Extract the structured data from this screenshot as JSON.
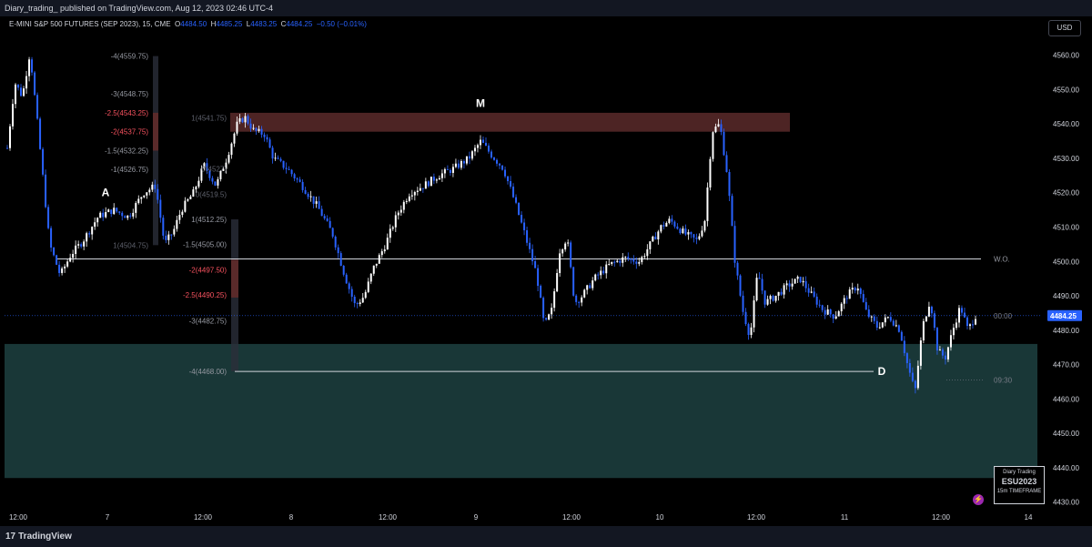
{
  "header": {
    "publisher_line": "Diary_trading_ published on TradingView.com, Aug 12, 2023 02:46 UTC-4"
  },
  "legend": {
    "symbol": "E-MINI S&P 500 FUTURES (SEP 2023), 15, CME",
    "open_label": "O",
    "open": "4484.50",
    "high_label": "H",
    "high": "4485.25",
    "low_label": "L",
    "low": "4483.25",
    "close_label": "C",
    "close": "4484.25",
    "change": "−0.50 (−0.01%)"
  },
  "currency_button": "USD",
  "price_label": "4484.25",
  "badge": {
    "line1": "Diary Trading",
    "line2": "ESU2023",
    "line3": "15m TIMEFRAME"
  },
  "brand": {
    "name": "TradingView",
    "mark": "17"
  },
  "flash_icon": "lightning-icon",
  "colors": {
    "background": "#000000",
    "bull_candle": "#ffffff",
    "bear_candle": "#2962ff",
    "supply_zone": "#5a2a2a",
    "demand_zone": "#1a3a3a",
    "fib_red": "#f7525f",
    "fib_gray": "#9598a1"
  },
  "chart_data": {
    "type": "candlestick",
    "symbol": "ESU2023",
    "timeframe": "15",
    "y_axis": {
      "ticks": [
        4430.0,
        4440.0,
        4450.0,
        4460.0,
        4470.0,
        4480.0,
        4490.0,
        4500.0,
        4510.0,
        4520.0,
        4530.0,
        4540.0,
        4550.0,
        4560.0
      ],
      "tick_labels": [
        "4430.00",
        "4440.00",
        "4450.00",
        "4460.00",
        "4470.00",
        "4480.00",
        "4490.00",
        "4500.00",
        "4510.00",
        "4520.00",
        "4530.00",
        "4540.00",
        "4550.00",
        "4560.00"
      ],
      "ylim": [
        4427.0,
        4566.0
      ]
    },
    "x_axis": {
      "tick_labels": [
        "12:00",
        "7",
        "12:00",
        "8",
        "12:00",
        "9",
        "12:00",
        "10",
        "12:00",
        "11",
        "12:00",
        "14"
      ]
    },
    "price_path": [
      [
        0,
        4533
      ],
      [
        0.5,
        4552
      ],
      [
        1.0,
        4548
      ],
      [
        1.5,
        4561
      ],
      [
        2.0,
        4540
      ],
      [
        2.8,
        4505
      ],
      [
        3.5,
        4496
      ],
      [
        4.2,
        4502
      ],
      [
        5,
        4506
      ],
      [
        6,
        4513
      ],
      [
        7,
        4515
      ],
      [
        8,
        4513
      ],
      [
        9,
        4520
      ],
      [
        9.8,
        4522
      ],
      [
        10.4,
        4505
      ],
      [
        11,
        4509
      ],
      [
        11.5,
        4515
      ],
      [
        12.3,
        4520
      ],
      [
        13,
        4528
      ],
      [
        13.8,
        4522
      ],
      [
        14.5,
        4530
      ],
      [
        15.2,
        4540
      ],
      [
        15.7,
        4542
      ],
      [
        16.3,
        4538
      ],
      [
        17,
        4537
      ],
      [
        17.6,
        4530
      ],
      [
        18.5,
        4527
      ],
      [
        19.5,
        4522
      ],
      [
        20.5,
        4516
      ],
      [
        21.5,
        4508
      ],
      [
        22.3,
        4496
      ],
      [
        23,
        4487
      ],
      [
        23.6,
        4490
      ],
      [
        24.2,
        4498
      ],
      [
        25,
        4505
      ],
      [
        25.8,
        4514
      ],
      [
        26.6,
        4520
      ],
      [
        27.5,
        4522
      ],
      [
        28.5,
        4525
      ],
      [
        29.5,
        4527
      ],
      [
        30.5,
        4530
      ],
      [
        31.3,
        4535
      ],
      [
        32,
        4531
      ],
      [
        32.8,
        4527
      ],
      [
        33.5,
        4518
      ],
      [
        34.2,
        4508
      ],
      [
        35,
        4496
      ],
      [
        35.5,
        4481
      ],
      [
        36,
        4486
      ],
      [
        36.5,
        4503
      ],
      [
        37,
        4507
      ],
      [
        37.5,
        4488
      ],
      [
        38,
        4490
      ],
      [
        38.8,
        4495
      ],
      [
        39.8,
        4499
      ],
      [
        40.8,
        4501
      ],
      [
        41.8,
        4500
      ],
      [
        42.5,
        4505
      ],
      [
        43.2,
        4510
      ],
      [
        43.8,
        4512
      ],
      [
        44.8,
        4508
      ],
      [
        45.6,
        4506
      ],
      [
        46.1,
        4512
      ],
      [
        46.6,
        4538
      ],
      [
        47.1,
        4540
      ],
      [
        47.6,
        4525
      ],
      [
        48.1,
        4500
      ],
      [
        48.6,
        4486
      ],
      [
        49.1,
        4478
      ],
      [
        49.6,
        4497
      ],
      [
        50.1,
        4488
      ],
      [
        50.8,
        4490
      ],
      [
        51.6,
        4493
      ],
      [
        52.4,
        4495
      ],
      [
        53.2,
        4490
      ],
      [
        53.9,
        4486
      ],
      [
        54.7,
        4484
      ],
      [
        55.5,
        4490
      ],
      [
        56.2,
        4493
      ],
      [
        56.8,
        4485
      ],
      [
        57.5,
        4481
      ],
      [
        58.3,
        4484
      ],
      [
        59,
        4480
      ],
      [
        59.5,
        4470
      ],
      [
        60,
        4462
      ],
      [
        60.5,
        4481
      ],
      [
        61,
        4489
      ],
      [
        61.5,
        4474
      ],
      [
        62,
        4472
      ],
      [
        62.5,
        4480
      ],
      [
        63,
        4487
      ],
      [
        63.5,
        4480
      ],
      [
        64,
        4484.25
      ]
    ],
    "zones": [
      {
        "name": "supply",
        "top": 4543.25,
        "bottom": 4537.75
      },
      {
        "name": "demand",
        "top": 4476.0,
        "bottom": 4437.0
      }
    ],
    "horizontal_lines": [
      {
        "label": "W.O.",
        "price": 4500.75
      },
      {
        "label": "D",
        "price": 4468.0
      }
    ],
    "price_markers": [
      {
        "label": "00:00",
        "price": 4484.25
      },
      {
        "label": "09:30",
        "price": 4465.5
      }
    ],
    "pattern_labels": [
      {
        "text": "A",
        "price": 4520
      },
      {
        "text": "M",
        "price": 4546
      },
      {
        "text": "D",
        "price": 4468
      }
    ],
    "fib_left": [
      {
        "text": "-4(4559.75)",
        "price": 4559.75,
        "color": "gray"
      },
      {
        "text": "-3(4548.75)",
        "price": 4548.75,
        "color": "gray"
      },
      {
        "text": "-2.5(4543.25)",
        "price": 4543.25,
        "color": "red"
      },
      {
        "text": "-2(4537.75)",
        "price": 4537.75,
        "color": "red"
      },
      {
        "text": "-1.5(4532.25)",
        "price": 4532.25,
        "color": "gray"
      },
      {
        "text": "-1(4526.75)",
        "price": 4526.75,
        "color": "gray"
      },
      {
        "text": "1(4504.75)",
        "price": 4504.75,
        "color": "dim"
      }
    ],
    "fib_right": [
      {
        "text": "1(4541.75)",
        "price": 4541.75,
        "color": "dim"
      },
      {
        "text": "0(4527)",
        "price": 4527.0,
        "color": "dim"
      },
      {
        "text": "0(4519.5)",
        "price": 4519.5,
        "color": "dim"
      },
      {
        "text": "1(4512.25)",
        "price": 4512.25,
        "color": "gray"
      },
      {
        "text": "-1.5(4505.00)",
        "price": 4505.0,
        "color": "gray"
      },
      {
        "text": "-2(4497.50)",
        "price": 4497.5,
        "color": "red"
      },
      {
        "text": "-2.5(4490.25)",
        "price": 4490.25,
        "color": "red"
      },
      {
        "text": "-3(4482.75)",
        "price": 4482.75,
        "color": "gray"
      },
      {
        "text": "-4(4468.00)",
        "price": 4468.0,
        "color": "gray"
      }
    ]
  }
}
